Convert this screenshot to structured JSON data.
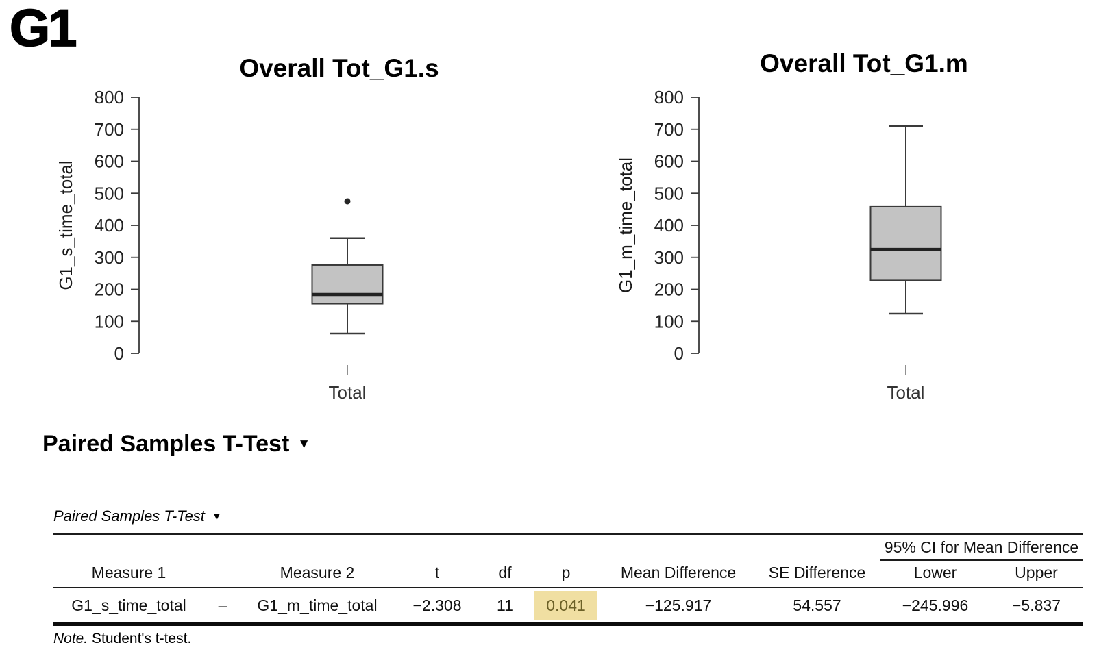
{
  "page": {
    "heading": "G1"
  },
  "colors": {
    "box_fill": "#c3c3c3",
    "box_stroke": "#3a3a3a",
    "median": "#222222",
    "axis": "#3a3a3a",
    "outlier": "#262626",
    "x_tick": "#909090",
    "highlight_bg": "#f0dfa2",
    "highlight_text": "#6b6027"
  },
  "section": {
    "title": "Paired Samples T-Test",
    "collapse_icon": "▼"
  },
  "table": {
    "caption": "Paired Samples T-Test",
    "collapse_icon": "▼",
    "ci_span_header": "95% CI for Mean Difference",
    "headers": {
      "measure1": "Measure 1",
      "measure2": "Measure 2",
      "t": "t",
      "df": "df",
      "p": "p",
      "mean_difference": "Mean Difference",
      "se_difference": "SE Difference",
      "lower": "Lower",
      "upper": "Upper"
    },
    "row": {
      "measure1": "G1_s_time_total",
      "separator": "–",
      "measure2": "G1_m_time_total",
      "t": "−2.308",
      "df": "11",
      "p": "0.041",
      "mean_difference": "−125.917",
      "se_difference": "54.557",
      "lower": "−245.996",
      "upper": "−5.837"
    },
    "note_label": "Note.",
    "note_text": " Student's t-test."
  },
  "chart_data": [
    {
      "type": "boxplot",
      "title": "Overall Tot_G1.s",
      "ylabel": "G1_s_time_total",
      "xlabel": "",
      "categories": [
        "Total"
      ],
      "ylim": [
        0,
        800
      ],
      "yticks": [
        0,
        100,
        200,
        300,
        400,
        500,
        600,
        700,
        800
      ],
      "grid": false,
      "series": [
        {
          "category": "Total",
          "whisker_min": 62,
          "q1": 155,
          "median": 184,
          "q3": 276,
          "whisker_max": 360,
          "outliers": [
            475
          ]
        }
      ]
    },
    {
      "type": "boxplot",
      "title": "Overall Tot_G1.m",
      "ylabel": "G1_m_time_total",
      "xlabel": "",
      "categories": [
        "Total"
      ],
      "ylim": [
        0,
        800
      ],
      "yticks": [
        0,
        100,
        200,
        300,
        400,
        500,
        600,
        700,
        800
      ],
      "grid": false,
      "series": [
        {
          "category": "Total",
          "whisker_min": 124,
          "q1": 228,
          "median": 325,
          "q3": 458,
          "whisker_max": 710,
          "outliers": []
        }
      ]
    },
    {
      "type": "table",
      "title": "Paired Samples T-Test",
      "ci_span_header": "95% CI for Mean Difference",
      "columns": [
        "Measure 1",
        "",
        "Measure 2",
        "t",
        "df",
        "p",
        "Mean Difference",
        "SE Difference",
        "Lower",
        "Upper"
      ],
      "rows": [
        [
          "G1_s_time_total",
          "–",
          "G1_m_time_total",
          -2.308,
          11,
          0.041,
          -125.917,
          54.557,
          -245.996,
          -5.837
        ]
      ],
      "highlighted_cell": {
        "row": 0,
        "column": "p",
        "value": 0.041
      },
      "note": "Note. Student's t-test."
    }
  ]
}
